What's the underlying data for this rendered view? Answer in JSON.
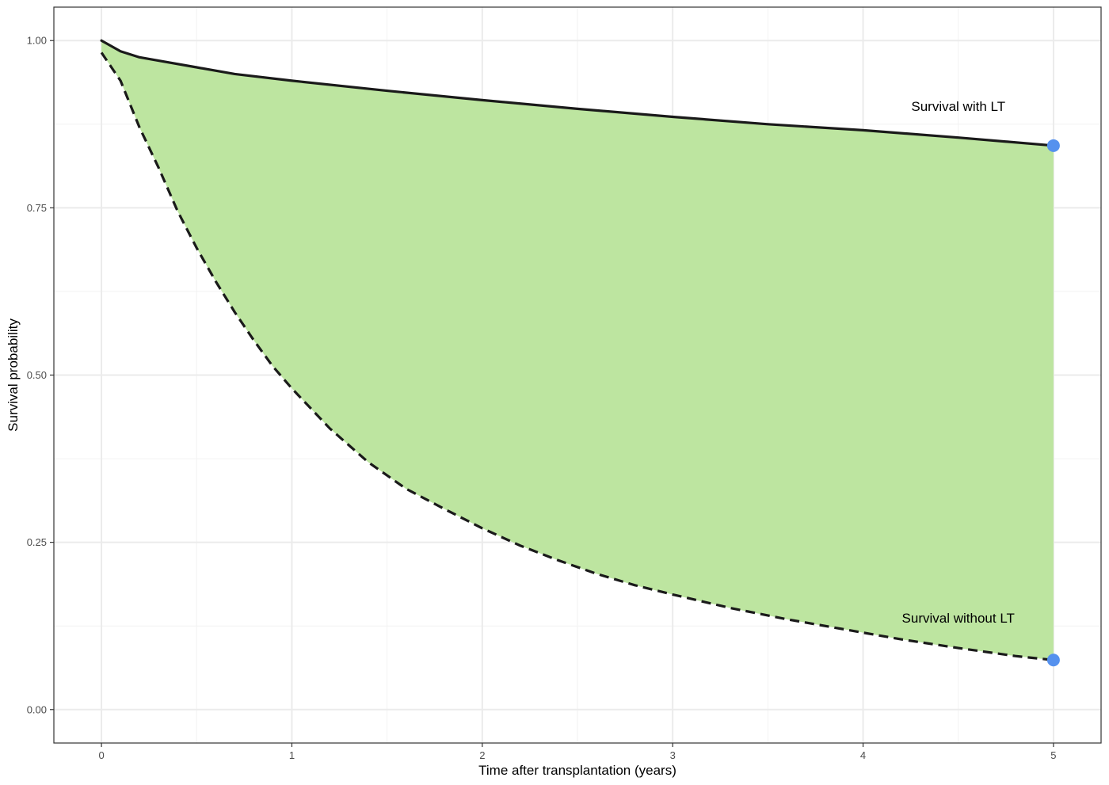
{
  "chart_data": {
    "type": "area",
    "xlabel": "Time after transplantation (years)",
    "ylabel": "Survival probability",
    "xlim": [
      -0.25,
      5.25
    ],
    "ylim": [
      -0.05,
      1.05
    ],
    "x_ticks": [
      0,
      1,
      2,
      3,
      4,
      5
    ],
    "x_tick_labels": [
      "0",
      "1",
      "2",
      "3",
      "4",
      "5"
    ],
    "y_ticks": [
      0,
      0.25,
      0.5,
      0.75,
      1.0
    ],
    "y_tick_labels": [
      "0.00",
      "0.25",
      "0.50",
      "0.75",
      "1.00"
    ],
    "grid": true,
    "series": [
      {
        "name": "Survival with LT",
        "line_style": "solid",
        "x": [
          0,
          0.1,
          0.2,
          0.3,
          0.5,
          0.7,
          1.0,
          1.5,
          2.0,
          2.5,
          3.0,
          3.5,
          4.0,
          4.5,
          5.0
        ],
        "y": [
          1.0,
          0.984,
          0.975,
          0.97,
          0.96,
          0.95,
          0.94,
          0.925,
          0.911,
          0.898,
          0.886,
          0.875,
          0.866,
          0.855,
          0.843
        ]
      },
      {
        "name": "Survival without LT",
        "line_style": "dashed",
        "x": [
          0,
          0.1,
          0.2,
          0.3,
          0.4,
          0.5,
          0.6,
          0.7,
          0.8,
          0.9,
          1.0,
          1.2,
          1.4,
          1.6,
          1.8,
          2.0,
          2.2,
          2.4,
          2.6,
          2.8,
          3.0,
          3.3,
          3.6,
          3.9,
          4.2,
          4.5,
          4.8,
          5.0
        ],
        "y": [
          0.982,
          0.94,
          0.87,
          0.81,
          0.745,
          0.69,
          0.64,
          0.594,
          0.552,
          0.513,
          0.48,
          0.42,
          0.37,
          0.33,
          0.3,
          0.271,
          0.245,
          0.223,
          0.203,
          0.186,
          0.172,
          0.152,
          0.135,
          0.12,
          0.105,
          0.092,
          0.08,
          0.074
        ]
      }
    ],
    "fill_between": {
      "color": "#bde5a0"
    },
    "endpoints": [
      {
        "x": 5,
        "y": 0.843
      },
      {
        "x": 5,
        "y": 0.074
      }
    ],
    "annotations": [
      {
        "text": "Survival with LT",
        "x": 4.5,
        "y": 0.895
      },
      {
        "text": "Survival without LT",
        "x": 4.5,
        "y": 0.13
      }
    ],
    "colors": {
      "fill": "#bde5a0",
      "line": "#1a1a1a",
      "point": "#5591ee",
      "grid_major": "#ebebeb",
      "grid_minor": "#f2f2f2",
      "panel_border": "#333333"
    }
  }
}
